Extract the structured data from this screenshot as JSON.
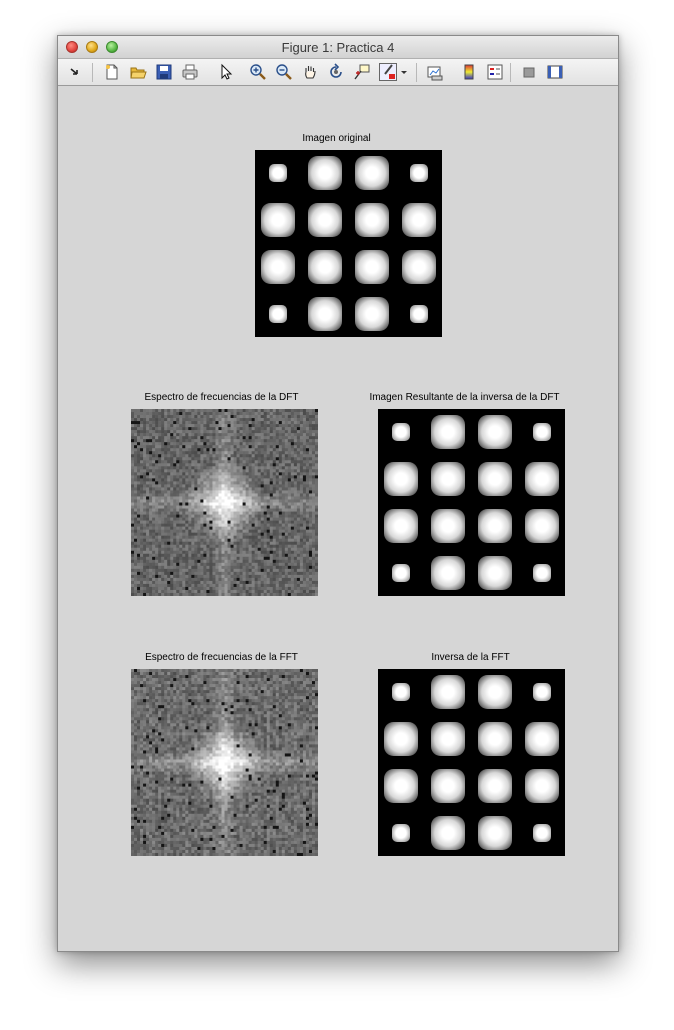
{
  "window": {
    "title": "Figure 1: Practica 4"
  },
  "toolbar": {
    "icons": [
      "dock-arrow-icon",
      "new-figure-icon",
      "open-file-icon",
      "save-icon",
      "print-icon",
      "pointer-icon",
      "zoom-in-icon",
      "zoom-out-icon",
      "pan-hand-icon",
      "rotate-3d-icon",
      "data-cursor-icon",
      "brush-icon",
      "dropdown-caret-icon",
      "link-plot-icon",
      "colorbar-icon",
      "legend-icon",
      "hide-plot-tools-icon",
      "show-plot-tools-icon"
    ]
  },
  "axes": {
    "original": {
      "title": "Imagen original"
    },
    "dft_spectrum": {
      "title": "Espectro de frecuencias de la DFT"
    },
    "dft_inverse": {
      "title": "Imagen Resultante de la inversa de la DFT"
    },
    "fft_spectrum": {
      "title": "Espectro de frecuencias de la FFT"
    },
    "fft_inverse": {
      "title": "Inversa de la FFT"
    }
  },
  "colors": {
    "window_bg": "#d6d6d6",
    "axes_bg": "#000000"
  }
}
